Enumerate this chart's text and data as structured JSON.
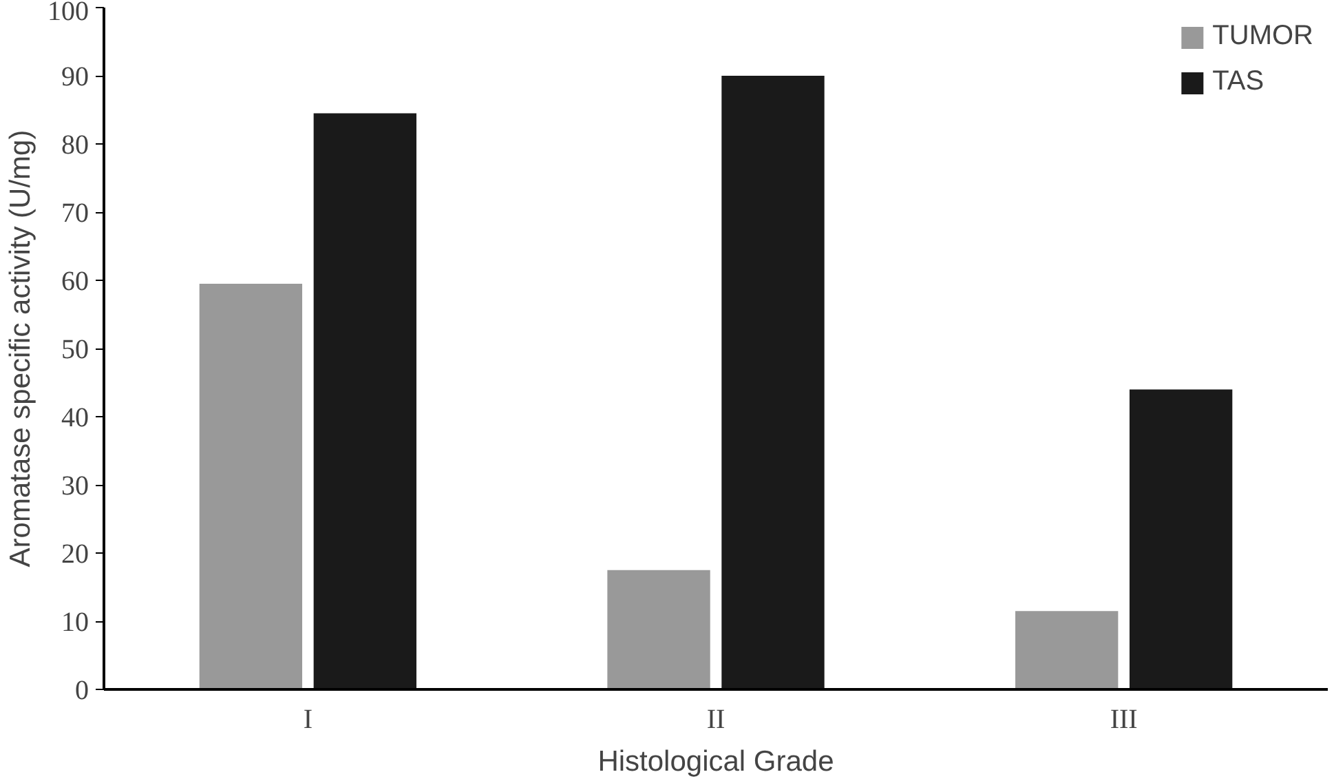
{
  "chart_data": {
    "type": "bar",
    "xlabel": "Histological Grade",
    "ylabel": "Aromatase specific activity (U/mg)",
    "categories": [
      "I",
      "II",
      "III"
    ],
    "series": [
      {
        "name": "TUMOR",
        "color": "#999999",
        "values": [
          59.5,
          17.5,
          11.5
        ]
      },
      {
        "name": "TAS",
        "color": "#1a1a1a",
        "values": [
          84.5,
          90,
          44
        ]
      }
    ],
    "ylim": [
      0,
      100
    ],
    "yticks": [
      0,
      10,
      20,
      30,
      40,
      50,
      60,
      70,
      80,
      90,
      100
    ],
    "grid": false,
    "legend": "top right"
  }
}
